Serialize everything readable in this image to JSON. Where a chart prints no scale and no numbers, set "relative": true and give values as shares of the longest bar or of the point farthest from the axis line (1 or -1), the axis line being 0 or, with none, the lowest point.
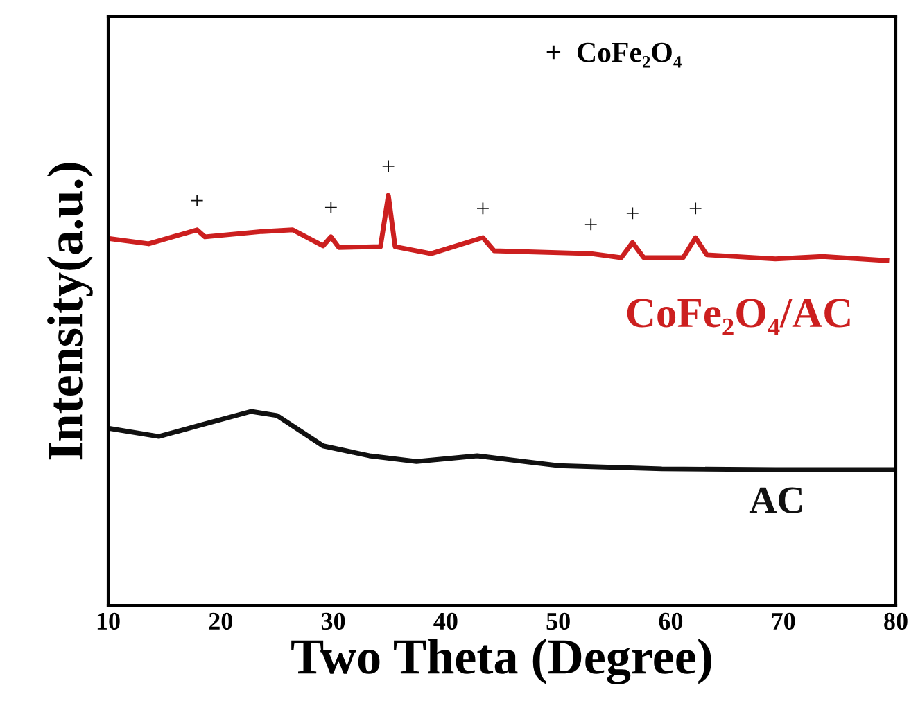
{
  "chart_data": {
    "type": "line",
    "relative": true,
    "xlabel": "Two Theta (Degree)",
    "ylabel": "Intensity(a.u.)",
    "xlim": [
      10,
      80
    ],
    "xticks": [
      10,
      20,
      30,
      40,
      50,
      60,
      70,
      80
    ],
    "tick_labels": "x",
    "grid": false,
    "legend": false,
    "marker": "none",
    "line_style": "solid",
    "series": [
      {
        "name": "CoFe₂O₄/AC",
        "color": "#cc1f1f",
        "x": [
          10.0,
          13.6,
          17.9,
          18.6,
          23.7,
          26.4,
          29.1,
          29.8,
          30.5,
          34.2,
          34.9,
          35.5,
          38.7,
          43.3,
          44.3,
          52.9,
          55.6,
          56.6,
          57.6,
          61.1,
          62.2,
          63.2,
          69.3,
          73.5,
          79.2
        ],
        "values": [
          0.895,
          0.882,
          0.916,
          0.899,
          0.912,
          0.916,
          0.877,
          0.899,
          0.873,
          0.875,
          1.0,
          0.875,
          0.858,
          0.897,
          0.865,
          0.858,
          0.848,
          0.885,
          0.848,
          0.848,
          0.897,
          0.855,
          0.845,
          0.851,
          0.841
        ]
      },
      {
        "name": "AC",
        "color": "#111111",
        "x": [
          10.0,
          14.5,
          18.1,
          22.7,
          25.0,
          29.1,
          33.2,
          37.4,
          42.8,
          50.0,
          59.2,
          69.3,
          79.9
        ],
        "values": [
          0.432,
          0.412,
          0.439,
          0.473,
          0.463,
          0.389,
          0.365,
          0.351,
          0.365,
          0.341,
          0.333,
          0.331,
          0.331
        ]
      }
    ],
    "annotations": [
      {
        "text": "+",
        "x": 17.9,
        "y": 0.916
      },
      {
        "text": "+",
        "x": 29.8,
        "y": 0.899
      },
      {
        "text": "+",
        "x": 34.9,
        "y": 1.0
      },
      {
        "text": "+",
        "x": 43.3,
        "y": 0.897
      },
      {
        "text": "+",
        "x": 52.9,
        "y": 0.858
      },
      {
        "text": "+",
        "x": 56.6,
        "y": 0.885
      },
      {
        "text": "+",
        "x": 62.2,
        "y": 0.897
      },
      "+  CoFe₂O₄"
    ]
  }
}
